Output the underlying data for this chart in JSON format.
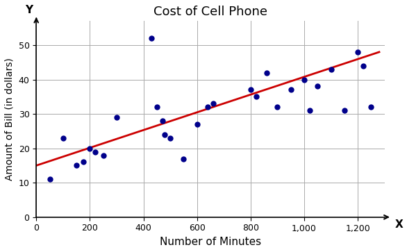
{
  "title": "Cost of Cell Phone",
  "xlabel": "Number of Minutes",
  "ylabel": "Amount of Bill (in dollars)",
  "scatter_x": [
    50,
    100,
    150,
    175,
    200,
    220,
    250,
    300,
    430,
    450,
    470,
    480,
    500,
    550,
    600,
    640,
    660,
    800,
    820,
    860,
    900,
    950,
    1000,
    1020,
    1050,
    1100,
    1150,
    1200,
    1220,
    1250
  ],
  "scatter_y": [
    11,
    23,
    15,
    16,
    20,
    19,
    18,
    29,
    52,
    32,
    28,
    24,
    23,
    17,
    27,
    32,
    33,
    37,
    35,
    42,
    32,
    37,
    40,
    31,
    38,
    43,
    31,
    48,
    44,
    32
  ],
  "scatter_color": "#00008B",
  "line_x": [
    0,
    1280
  ],
  "line_y": [
    15,
    48
  ],
  "line_color": "#cc0000",
  "line_width": 2.0,
  "xlim": [
    0,
    1300
  ],
  "ylim": [
    0,
    57
  ],
  "xticks": [
    0,
    200,
    400,
    600,
    800,
    1000,
    1200
  ],
  "yticks": [
    0,
    10,
    20,
    30,
    40,
    50
  ],
  "grid_color": "#aaaaaa",
  "bg_color": "#ffffff",
  "marker_size": 5
}
